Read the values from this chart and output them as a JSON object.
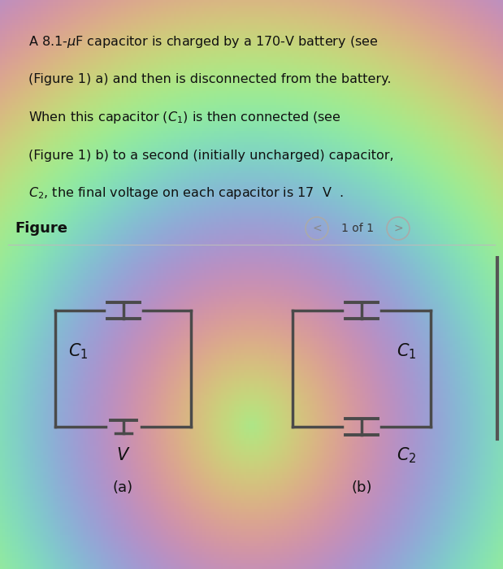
{
  "bg_color": "#c8dfc0",
  "text_box_color": "#f2f2f2",
  "text_box_edge": "#cccccc",
  "circuit_color": "#4a4a4a",
  "label_color": "#111111",
  "figure_label_color": "#111111",
  "nav_color": "#888888",
  "separator_color": "#bbbbbb",
  "lines_text": [
    "A 8.1-$\\mu$F capacitor is charged by a 170-V battery (see",
    "(Figure 1) a) and then is disconnected from the battery.",
    "When this capacitor ($C_1$) is then connected (see",
    "(Figure 1) b) to a second (initially uncharged) capacitor,",
    "$C_2$, the final voltage on each capacitor is 17  V  ."
  ],
  "figure_label": "Figure",
  "nav_label": "1 of 1",
  "fig_a_label": "(a)",
  "fig_b_label": "(b)",
  "cap_a_label": "$C_1$",
  "bat_a_label": "$V$",
  "cap_b1_label": "$C_1$",
  "cap_b2_label": "$C_2$",
  "text_fontsize": 11.5,
  "figure_fontsize": 13,
  "circuit_lw": 2.5,
  "cap_lw": 2.8
}
